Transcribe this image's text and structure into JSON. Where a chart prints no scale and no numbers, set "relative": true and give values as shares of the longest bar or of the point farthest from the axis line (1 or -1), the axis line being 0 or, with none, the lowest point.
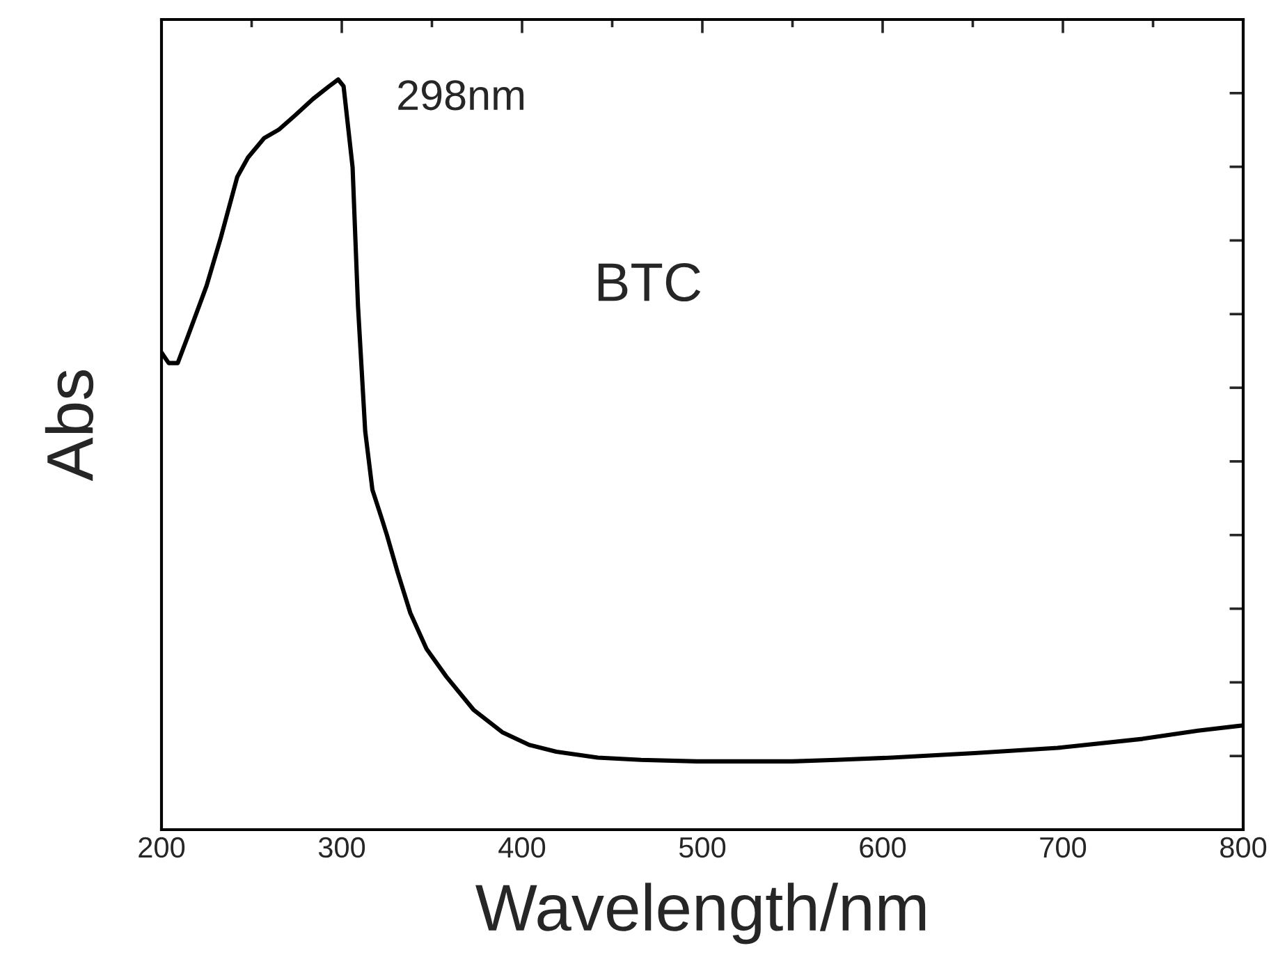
{
  "chart_data": {
    "type": "line",
    "relative": true,
    "xlabel": "Wavelength/nm",
    "ylabel": "Abs",
    "xlim": [
      200,
      800
    ],
    "xticks": [
      200,
      300,
      400,
      500,
      600,
      700,
      800
    ],
    "grid": false,
    "legend": false,
    "marker": "none",
    "line_style": "solid",
    "annotations": [
      {
        "text": "298nm",
        "x": 298,
        "y": 1.0
      },
      "BTC"
    ],
    "series": [
      {
        "color": "#000000",
        "x": [
          200,
          204,
          209,
          215,
          225,
          233,
          242,
          248,
          257,
          265,
          274,
          284,
          293,
          298,
          301,
          306,
          309,
          313,
          317,
          322,
          325,
          331,
          338,
          347,
          358,
          373,
          389,
          404,
          419,
          442,
          466,
          497,
          527,
          550,
          574,
          605,
          651,
          697,
          744,
          775,
          800
        ],
        "values": [
          0.636,
          0.622,
          0.622,
          0.66,
          0.725,
          0.79,
          0.87,
          0.896,
          0.922,
          0.933,
          0.952,
          0.974,
          0.991,
          1.0,
          0.991,
          0.883,
          0.698,
          0.531,
          0.453,
          0.416,
          0.393,
          0.343,
          0.289,
          0.241,
          0.204,
          0.16,
          0.13,
          0.113,
          0.104,
          0.096,
          0.093,
          0.091,
          0.091,
          0.091,
          0.093,
          0.096,
          0.102,
          0.109,
          0.121,
          0.132,
          0.139
        ]
      }
    ]
  }
}
